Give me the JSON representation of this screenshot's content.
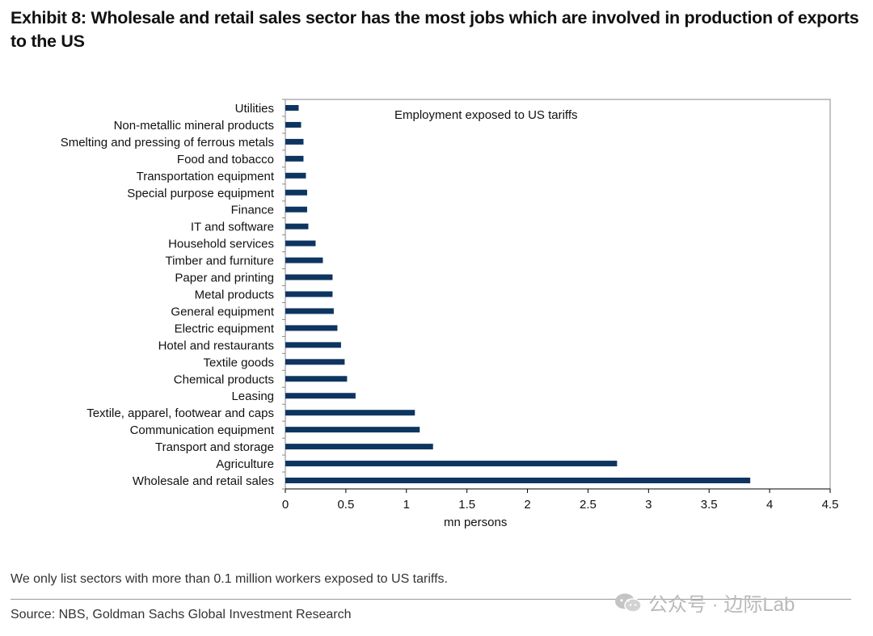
{
  "title": "Exhibit 8: Wholesale and retail sales sector has the most jobs which are involved in production of exports to the US",
  "note": "We only list sectors with more than 0.1 million workers exposed to US tariffs.",
  "source": "Source: NBS, Goldman Sachs Global Investment Research",
  "watermark": "公众号 · 边际Lab",
  "colors": {
    "bar": "#0d3560",
    "axis": "#000000"
  },
  "chart_data": {
    "type": "bar",
    "orientation": "horizontal",
    "title": "Employment exposed to US tariffs",
    "xlabel": "mn persons",
    "ylabel": "",
    "xlim": [
      0,
      4.5
    ],
    "xticks": [
      "0",
      "0.5",
      "1",
      "1.5",
      "2",
      "2.5",
      "3",
      "3.5",
      "4",
      "4.5"
    ],
    "grid": false,
    "categories": [
      "Utilities",
      "Non-metallic mineral products",
      "Smelting and pressing of ferrous metals",
      "Food and tobacco",
      "Transportation equipment",
      "Special purpose equipment",
      "Finance",
      "IT and software",
      "Household services",
      "Timber and furniture",
      "Paper and printing",
      "Metal products",
      "General equipment",
      "Electric equipment",
      "Hotel and restaurants",
      "Textile goods",
      "Chemical products",
      "Leasing",
      "Textile, apparel, footwear and caps",
      "Communication equipment",
      "Transport and storage",
      "Agriculture",
      "Wholesale and retail sales"
    ],
    "values": [
      0.11,
      0.13,
      0.15,
      0.15,
      0.17,
      0.18,
      0.18,
      0.19,
      0.25,
      0.31,
      0.39,
      0.39,
      0.4,
      0.43,
      0.46,
      0.49,
      0.51,
      0.58,
      1.07,
      1.11,
      1.22,
      2.74,
      3.84
    ]
  }
}
